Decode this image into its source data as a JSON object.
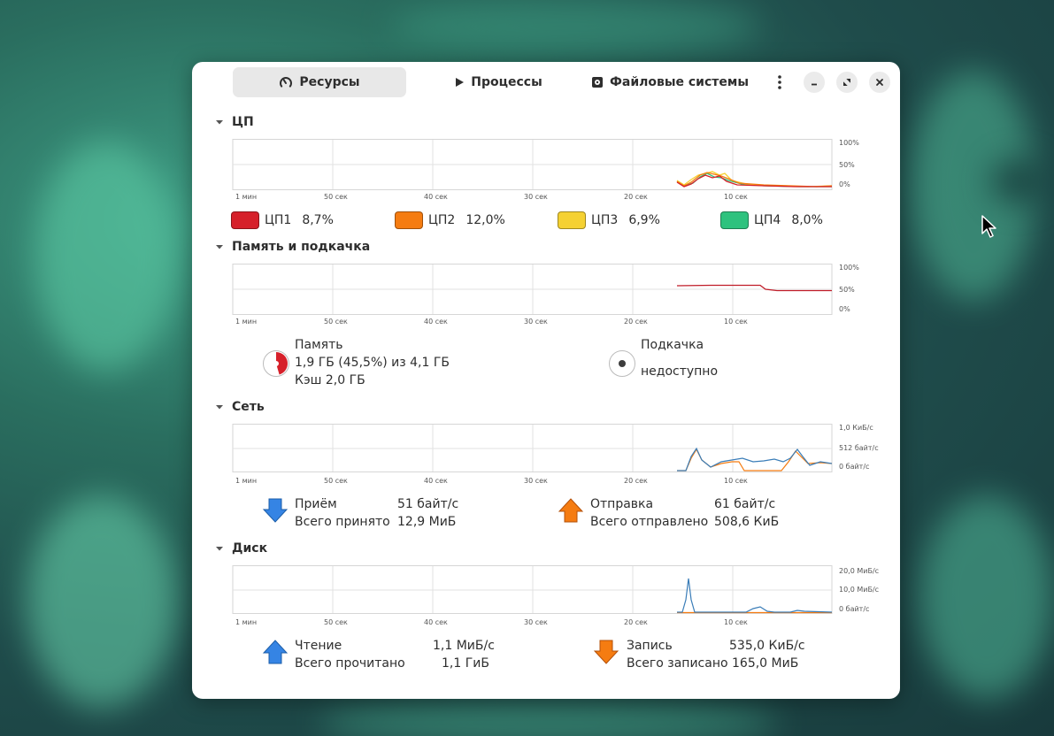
{
  "tabs": [
    {
      "label": "Ресурсы",
      "icon": "gauge-icon",
      "active": true
    },
    {
      "label": "Процессы",
      "icon": "play-icon"
    },
    {
      "label": "Файловые системы",
      "icon": "disk-icon"
    }
  ],
  "time_labels": [
    "1 мин",
    "50 сек",
    "40 сек",
    "30 сек",
    "20 сек",
    "10 сек"
  ],
  "cpu": {
    "title": "ЦП",
    "yticks": [
      "100%",
      "50%",
      "0%"
    ],
    "legend": [
      {
        "label": "ЦП1",
        "value": "8,7%",
        "color": "#d6202a"
      },
      {
        "label": "ЦП2",
        "value": "12,0%",
        "color": "#f57c11"
      },
      {
        "label": "ЦП3",
        "value": "6,9%",
        "color": "#f5d132"
      },
      {
        "label": "ЦП4",
        "value": "8,0%",
        "color": "#2ec27e"
      }
    ]
  },
  "memory": {
    "title": "Память и подкачка",
    "yticks": [
      "100%",
      "50%",
      "0%"
    ],
    "mem_label": "Память",
    "mem_usage": "1,9 ГБ (45,5%) из 4,1 ГБ",
    "mem_cache": "Кэш 2,0 ГБ",
    "mem_fraction": 0.455,
    "swap_label": "Подкачка",
    "swap_status": "недоступно"
  },
  "network": {
    "title": "Сеть",
    "yticks": [
      "1,0 КиБ/с",
      "512 байт/с",
      "0 байт/с"
    ],
    "recv_label": "Приём",
    "recv_value": "51 байт/с",
    "recv_total_label": "Всего принято",
    "recv_total": "12,9 МиБ",
    "send_label": "Отправка",
    "send_value": "61 байт/с",
    "send_total_label": "Всего отправлено",
    "send_total": "508,6 КиБ"
  },
  "disk": {
    "title": "Диск",
    "yticks": [
      "20,0 МиБ/с",
      "10,0 МиБ/с",
      "0 байт/с"
    ],
    "read_label": "Чтение",
    "read_value": "1,1 МиБ/с",
    "read_total_label": "Всего прочитано",
    "read_total": "1,1 ГиБ",
    "write_label": "Запись",
    "write_value": "535,0 КиБ/с",
    "write_total_label": "Всего записано",
    "write_total": "165,0 МиБ"
  },
  "colors": {
    "recv_arrow": "#3584e4",
    "send_arrow": "#f57c11",
    "graph_blue": "#3a7db8",
    "graph_orange": "#f57c11",
    "memory_line": "#c01c28"
  }
}
